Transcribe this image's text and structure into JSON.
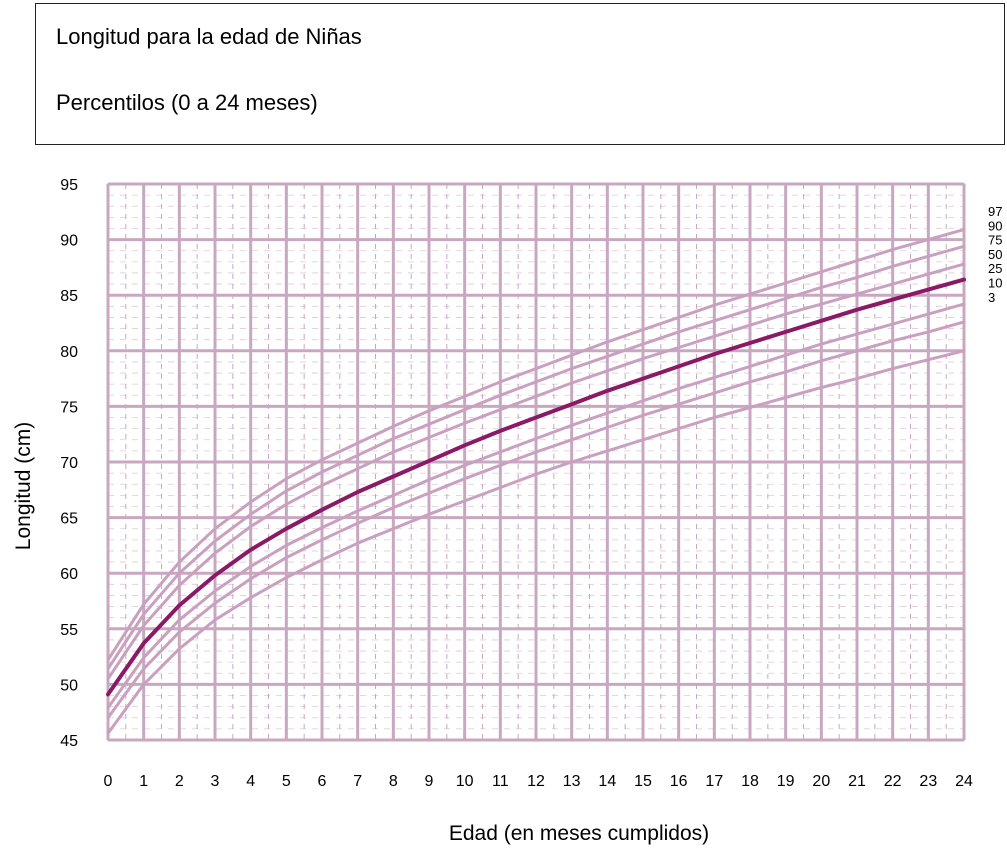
{
  "header": {
    "title": "Longitud para la edad de Niñas",
    "subtitle": "Percentilos (0 a 24 meses)"
  },
  "chart_data": {
    "type": "line",
    "title": "Longitud para la edad de Niñas",
    "subtitle": "Percentilos (0 a 24 meses)",
    "xlabel": "Edad (en meses cumplidos)",
    "ylabel": "Longitud (cm)",
    "xlim": [
      0,
      24
    ],
    "ylim": [
      45,
      95
    ],
    "x_ticks": [
      0,
      1,
      2,
      3,
      4,
      5,
      6,
      7,
      8,
      9,
      10,
      11,
      12,
      13,
      14,
      15,
      16,
      17,
      18,
      19,
      20,
      21,
      22,
      23,
      24
    ],
    "y_ticks": [
      45,
      50,
      55,
      60,
      65,
      70,
      75,
      80,
      85,
      90,
      95
    ],
    "grid": true,
    "legend": "right-edge line labels",
    "colors": {
      "grid": "#c8a8c0",
      "percentile_line": "#c9a0bf",
      "median_line": "#8b1a66"
    },
    "x": [
      0,
      1,
      2,
      3,
      4,
      5,
      6,
      7,
      8,
      9,
      10,
      11,
      12,
      13,
      14,
      15,
      16,
      17,
      18,
      19,
      20,
      21,
      22,
      23,
      24
    ],
    "series": [
      {
        "name": "97",
        "values": [
          52.2,
          57.2,
          61.0,
          64.0,
          66.4,
          68.5,
          70.2,
          71.7,
          73.2,
          74.6,
          75.9,
          77.2,
          78.4,
          79.6,
          80.8,
          81.9,
          83.0,
          84.1,
          85.1,
          86.1,
          87.1,
          88.1,
          89.1,
          90.0,
          90.9
        ]
      },
      {
        "name": "90",
        "values": [
          51.4,
          56.3,
          60.0,
          62.9,
          65.3,
          67.4,
          69.1,
          70.6,
          72.1,
          73.4,
          74.7,
          76.0,
          77.2,
          78.4,
          79.5,
          80.6,
          81.7,
          82.7,
          83.7,
          84.7,
          85.7,
          86.6,
          87.6,
          88.5,
          89.4
        ]
      },
      {
        "name": "75",
        "values": [
          50.5,
          55.3,
          58.9,
          61.8,
          64.2,
          66.2,
          67.9,
          69.4,
          70.9,
          72.2,
          73.5,
          74.7,
          75.9,
          77.1,
          78.2,
          79.3,
          80.3,
          81.3,
          82.3,
          83.3,
          84.2,
          85.1,
          86.0,
          86.9,
          87.8
        ]
      },
      {
        "name": "50",
        "values": [
          49.1,
          53.7,
          57.1,
          59.8,
          62.1,
          64.0,
          65.7,
          67.3,
          68.7,
          70.1,
          71.5,
          72.8,
          74.0,
          75.2,
          76.4,
          77.5,
          78.6,
          79.7,
          80.7,
          81.7,
          82.7,
          83.7,
          84.6,
          85.5,
          86.4
        ]
      },
      {
        "name": "25",
        "values": [
          47.9,
          52.4,
          55.8,
          58.4,
          60.6,
          62.5,
          64.1,
          65.6,
          67.0,
          68.4,
          69.7,
          70.9,
          72.1,
          73.3,
          74.4,
          75.5,
          76.6,
          77.6,
          78.6,
          79.6,
          80.6,
          81.5,
          82.4,
          83.3,
          84.2
        ]
      },
      {
        "name": "10",
        "values": [
          47.0,
          51.4,
          54.7,
          57.3,
          59.5,
          61.4,
          63.0,
          64.5,
          65.9,
          67.2,
          68.5,
          69.7,
          70.9,
          72.0,
          73.1,
          74.2,
          75.2,
          76.2,
          77.2,
          78.1,
          79.1,
          80.0,
          80.9,
          81.7,
          82.6
        ]
      },
      {
        "name": "3",
        "values": [
          45.6,
          50.0,
          53.2,
          55.8,
          57.8,
          59.6,
          61.2,
          62.7,
          64.0,
          65.3,
          66.5,
          67.7,
          68.9,
          70.0,
          71.0,
          72.0,
          73.0,
          74.0,
          74.9,
          75.8,
          76.7,
          77.5,
          78.4,
          79.2,
          80.0
        ]
      }
    ]
  }
}
